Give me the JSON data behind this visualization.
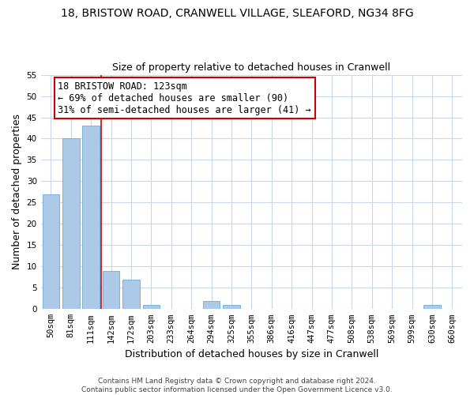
{
  "title": "18, BRISTOW ROAD, CRANWELL VILLAGE, SLEAFORD, NG34 8FG",
  "subtitle": "Size of property relative to detached houses in Cranwell",
  "xlabel": "Distribution of detached houses by size in Cranwell",
  "ylabel": "Number of detached properties",
  "bar_labels": [
    "50sqm",
    "81sqm",
    "111sqm",
    "142sqm",
    "172sqm",
    "203sqm",
    "233sqm",
    "264sqm",
    "294sqm",
    "325sqm",
    "355sqm",
    "386sqm",
    "416sqm",
    "447sqm",
    "477sqm",
    "508sqm",
    "538sqm",
    "569sqm",
    "599sqm",
    "630sqm",
    "660sqm"
  ],
  "bar_values": [
    27,
    40,
    43,
    9,
    7,
    1,
    0,
    0,
    2,
    1,
    0,
    0,
    0,
    0,
    0,
    0,
    0,
    0,
    0,
    1,
    0
  ],
  "bar_color": "#adc9e8",
  "bar_edge_color": "#6aaad4",
  "vline_x": 2.5,
  "vline_color": "#cc0000",
  "annotation_line1": "18 BRISTOW ROAD: 123sqm",
  "annotation_line2": "← 69% of detached houses are smaller (90)",
  "annotation_line3": "31% of semi-detached houses are larger (41) →",
  "ylim": [
    0,
    55
  ],
  "yticks": [
    0,
    5,
    10,
    15,
    20,
    25,
    30,
    35,
    40,
    45,
    50,
    55
  ],
  "background_color": "#ffffff",
  "grid_color": "#c8d8e8",
  "title_fontsize": 10,
  "subtitle_fontsize": 9,
  "axis_label_fontsize": 9,
  "tick_fontsize": 7.5,
  "annotation_fontsize": 8.5,
  "footer_fontsize": 6.5
}
